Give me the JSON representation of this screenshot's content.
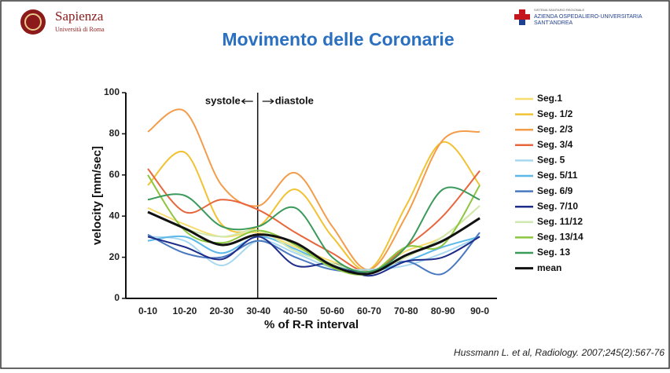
{
  "header": {
    "left_logo": {
      "name": "Sapienza",
      "subtitle": "Università di Roma"
    },
    "right_logo": {
      "system": "SISTEMA SANITARIO REGIONALE",
      "name": "AZIENDA OSPEDALIERO-UNIVERSITARIA",
      "subname": "SANT'ANDREA"
    },
    "title": "Movimento delle Coronarie"
  },
  "chart_data": {
    "type": "line",
    "x_label": "% of R-R interval",
    "y_label": "velocity [mm/sec]",
    "annotations": [
      "systole",
      "diastole"
    ],
    "categories": [
      "0-10",
      "10-20",
      "20-30",
      "30-40",
      "40-50",
      "50-60",
      "60-70",
      "70-80",
      "80-90",
      "90-0"
    ],
    "ylim": [
      0,
      100
    ],
    "yticks": [
      0,
      20,
      40,
      60,
      80,
      100
    ],
    "series": [
      {
        "name": "Seg.1",
        "color": "#f7dc6f",
        "values": [
          44,
          36,
          30,
          32,
          25,
          18,
          13,
          23,
          30,
          45
        ]
      },
      {
        "name": "Seg. 1/2",
        "color": "#f1c232",
        "values": [
          55,
          71,
          36,
          35,
          53,
          30,
          14,
          45,
          76,
          55
        ]
      },
      {
        "name": "Seg. 2/3",
        "color": "#f39c4a",
        "values": [
          81,
          91,
          55,
          45,
          61,
          35,
          14,
          40,
          77,
          81
        ]
      },
      {
        "name": "Seg. 3/4",
        "color": "#e8663c",
        "values": [
          63,
          42,
          48,
          43,
          32,
          22,
          13,
          25,
          40,
          62
        ]
      },
      {
        "name": "Seg. 5",
        "color": "#a8d8f0",
        "values": [
          30,
          28,
          16,
          28,
          22,
          15,
          14,
          16,
          22,
          30
        ]
      },
      {
        "name": "Seg. 5/11",
        "color": "#5bb8e8",
        "values": [
          28,
          30,
          22,
          30,
          24,
          16,
          13,
          18,
          25,
          30
        ]
      },
      {
        "name": "Seg. 6/9",
        "color": "#4a78c0",
        "values": [
          31,
          22,
          20,
          28,
          20,
          14,
          13,
          18,
          12,
          32
        ]
      },
      {
        "name": "Seg. 7/10",
        "color": "#1f2d8a",
        "values": [
          30,
          25,
          19,
          30,
          16,
          17,
          11,
          18,
          20,
          30
        ]
      },
      {
        "name": "Seg. 11/12",
        "color": "#cfe8b0",
        "values": [
          42,
          34,
          30,
          33,
          23,
          17,
          13,
          20,
          30,
          45
        ]
      },
      {
        "name": "Seg. 13/14",
        "color": "#8cc63f",
        "values": [
          60,
          33,
          27,
          33,
          26,
          15,
          12,
          25,
          26,
          55
        ]
      },
      {
        "name": "Seg. 13",
        "color": "#3a9a5a",
        "values": [
          48,
          50,
          35,
          35,
          44,
          20,
          13,
          25,
          53,
          48
        ]
      },
      {
        "name": "mean",
        "color": "#111111",
        "values": [
          42,
          34,
          26,
          31,
          27,
          16,
          12,
          21,
          28,
          39
        ]
      }
    ]
  },
  "citation": "Hussmann L. et al, Radiology. 2007;245(2):567-76"
}
